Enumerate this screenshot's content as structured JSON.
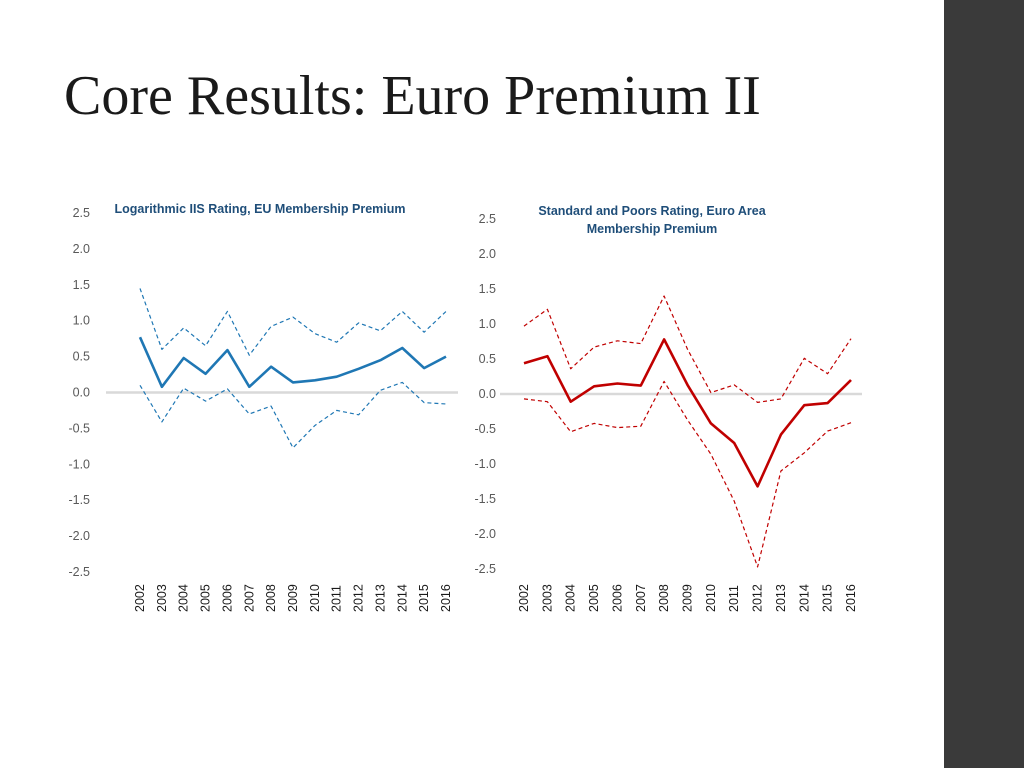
{
  "slide": {
    "title": "Core Results: Euro Premium II",
    "colors": {
      "sidebar": "#3a3a3a",
      "left_series": "#1f77b4",
      "right_series": "#c00000",
      "zero_line": "#d9d9d9",
      "title_left": "#1f4e79",
      "title_right": "#1f4e79"
    }
  },
  "chart_data": [
    {
      "type": "line",
      "title_lines": [
        "Logarithmic IIS Rating, EU Membership Premium"
      ],
      "x": [
        "2002",
        "2003",
        "2004",
        "2005",
        "2006",
        "2007",
        "2008",
        "2009",
        "2010",
        "2011",
        "2012",
        "2013",
        "2014",
        "2015",
        "2016"
      ],
      "ylim": [
        -2.5,
        2.5
      ],
      "yticks": [
        "2.5",
        "2.0",
        "1.5",
        "1.0",
        "0.5",
        "0.0",
        "-0.5",
        "-1.0",
        "-1.5",
        "-2.0",
        "-2.5"
      ],
      "grid": false,
      "series": [
        {
          "role": "estimate",
          "style": "solid",
          "color": "#1f77b4",
          "values": [
            0.77,
            0.08,
            0.48,
            0.26,
            0.59,
            0.08,
            0.36,
            0.14,
            0.17,
            0.22,
            0.33,
            0.45,
            0.62,
            0.34,
            0.5
          ]
        },
        {
          "role": "upper",
          "style": "dashed",
          "color": "#1f77b4",
          "values": [
            1.45,
            0.6,
            0.9,
            0.65,
            1.13,
            0.52,
            0.92,
            1.05,
            0.82,
            0.7,
            0.97,
            0.86,
            1.13,
            0.84,
            1.13
          ]
        },
        {
          "role": "lower",
          "style": "dashed",
          "color": "#1f77b4",
          "values": [
            0.1,
            -0.41,
            0.06,
            -0.12,
            0.05,
            -0.3,
            -0.19,
            -0.77,
            -0.46,
            -0.25,
            -0.31,
            0.03,
            0.14,
            -0.14,
            -0.16
          ]
        }
      ]
    },
    {
      "type": "line",
      "title_lines": [
        "Standard and Poors Rating, Euro Area",
        "Membership Premium"
      ],
      "x": [
        "2002",
        "2003",
        "2004",
        "2005",
        "2006",
        "2007",
        "2008",
        "2009",
        "2010",
        "2011",
        "2012",
        "2013",
        "2014",
        "2015",
        "2016"
      ],
      "ylim": [
        -2.5,
        2.5
      ],
      "yticks": [
        "2.5",
        "2.0",
        "1.5",
        "1.0",
        "0.5",
        "0.0",
        "-0.5",
        "-1.0",
        "-1.5",
        "-2.0",
        "-2.5"
      ],
      "grid": false,
      "series": [
        {
          "role": "estimate",
          "style": "solid",
          "color": "#c00000",
          "values": [
            0.44,
            0.54,
            -0.11,
            0.11,
            0.15,
            0.12,
            0.78,
            0.13,
            -0.42,
            -0.7,
            -1.32,
            -0.58,
            -0.16,
            -0.13,
            0.2
          ]
        },
        {
          "role": "upper",
          "style": "dashed",
          "color": "#c00000",
          "values": [
            0.97,
            1.21,
            0.36,
            0.67,
            0.76,
            0.72,
            1.4,
            0.64,
            0.02,
            0.13,
            -0.12,
            -0.07,
            0.51,
            0.29,
            0.79
          ]
        },
        {
          "role": "lower",
          "style": "dashed",
          "color": "#c00000",
          "values": [
            -0.07,
            -0.11,
            -0.54,
            -0.42,
            -0.48,
            -0.46,
            0.18,
            -0.37,
            -0.86,
            -1.53,
            -2.47,
            -1.1,
            -0.84,
            -0.53,
            -0.41
          ]
        }
      ]
    }
  ]
}
